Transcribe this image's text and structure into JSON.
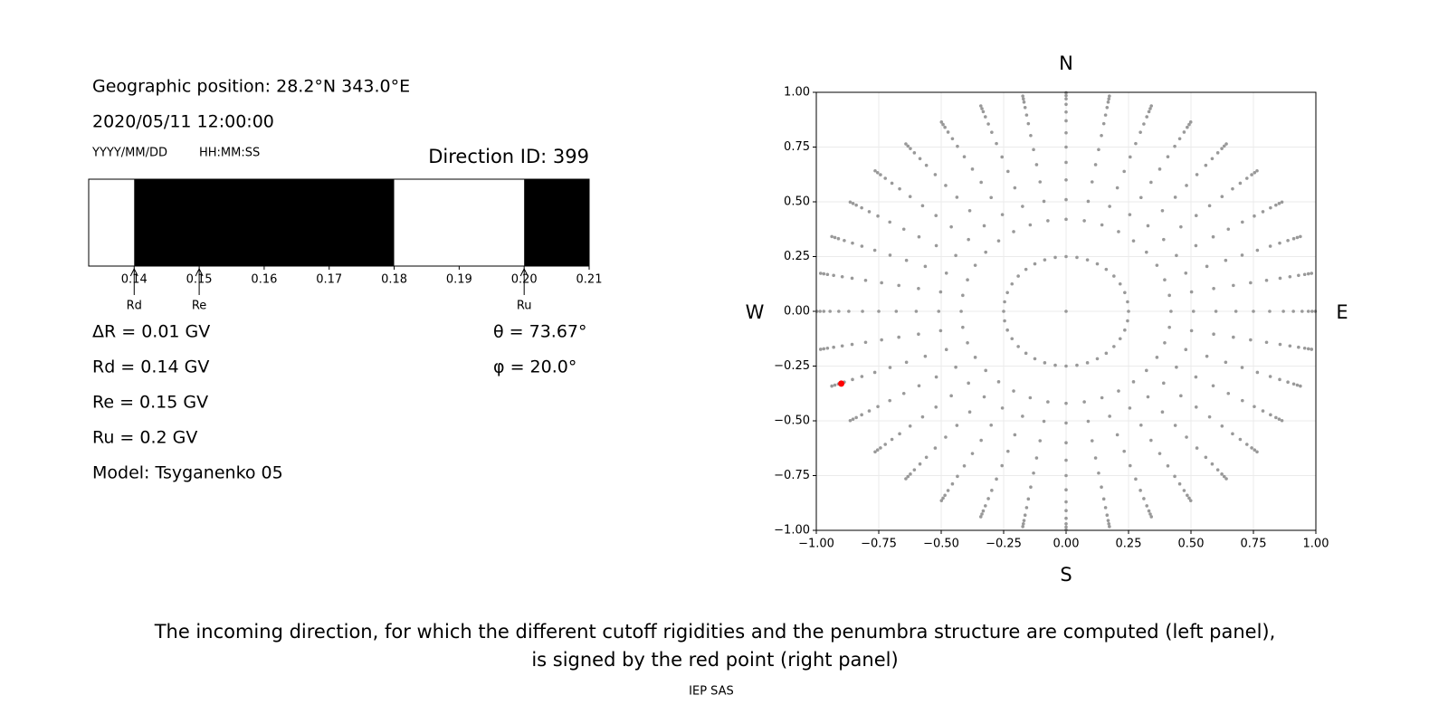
{
  "header": {
    "position": "Geographic position: 28.2°N 343.0°E",
    "datetime": "2020/05/11 12:00:00",
    "date_format": "YYYY/MM/DD",
    "time_format": "HH:MM:SS"
  },
  "chart_data": [
    {
      "type": "penumbra",
      "title": "Direction ID: 399",
      "edges": [
        0.133,
        0.14,
        0.18,
        0.2,
        0.21
      ],
      "colors": [
        "#ffffff",
        "#000000",
        "#ffffff",
        "#000000"
      ],
      "xlim": [
        0.133,
        0.21
      ],
      "xticks": [
        0.14,
        0.15,
        0.16,
        0.17,
        0.18,
        0.19,
        {
          "value": 0.2,
          "label": "0.20"
        },
        0.21
      ],
      "markers": [
        {
          "label": "Rd",
          "value": 0.14
        },
        {
          "label": "Re",
          "value": 0.15
        },
        {
          "label": "Ru",
          "value": 0.2
        }
      ]
    },
    {
      "type": "polar-scatter",
      "azimuths": [
        0,
        10,
        20,
        30,
        40,
        50,
        60,
        70,
        80,
        90,
        100,
        110,
        120,
        130,
        140,
        150,
        160,
        170,
        180,
        190,
        200,
        210,
        220,
        230,
        240,
        250,
        260,
        270,
        280,
        290,
        300,
        310,
        320,
        330,
        340,
        350
      ],
      "radii": [
        0,
        0.25,
        0.42,
        0.51,
        0.6,
        0.68,
        0.75,
        0.815,
        0.87,
        0.91,
        0.945,
        0.97,
        0.985,
        0.998
      ],
      "color": "#999999",
      "highlight": {
        "x": -0.9,
        "y": -0.33,
        "color": "#ff0000"
      },
      "xlim": [
        -1,
        1
      ],
      "ylim": [
        -1,
        1
      ],
      "xticks": [
        {
          "value": -1,
          "label": "−1.00"
        },
        {
          "value": -0.75,
          "label": "−0.75"
        },
        {
          "value": -0.5,
          "label": "−0.50"
        },
        {
          "value": -0.25,
          "label": "−0.25"
        },
        {
          "value": 0,
          "label": "0.00"
        },
        {
          "value": 0.25,
          "label": "0.25"
        },
        {
          "value": 0.5,
          "label": "0.50"
        },
        {
          "value": 0.75,
          "label": "0.75"
        },
        {
          "value": 1,
          "label": "1.00"
        }
      ],
      "yticks": [
        {
          "value": -1,
          "label": "−1.00"
        },
        {
          "value": -0.75,
          "label": "−0.75"
        },
        {
          "value": -0.5,
          "label": "−0.50"
        },
        {
          "value": -0.25,
          "label": "−0.25"
        },
        {
          "value": 0,
          "label": "0.00"
        },
        {
          "value": 0.25,
          "label": "0.25"
        },
        {
          "value": 0.5,
          "label": "0.50"
        },
        {
          "value": 0.75,
          "label": "0.75"
        },
        {
          "value": 1,
          "label": "1.00"
        }
      ],
      "grid": true,
      "directions": {
        "top": "N",
        "bottom": "S",
        "left": "W",
        "right": "E"
      }
    }
  ],
  "info": {
    "left": [
      "ΔR = 0.01 GV",
      "Rd = 0.14 GV",
      "Re = 0.15 GV",
      "Ru = 0.2 GV",
      "Model: Tsyganenko 05"
    ],
    "right": [
      "θ = 73.67°",
      "φ = 20.0°"
    ]
  },
  "caption": [
    "The incoming direction, for which the different cutoff rigidities and the penumbra structure are computed (left panel),",
    "is signed by the red point (right panel)"
  ],
  "footer": "IEP SAS"
}
